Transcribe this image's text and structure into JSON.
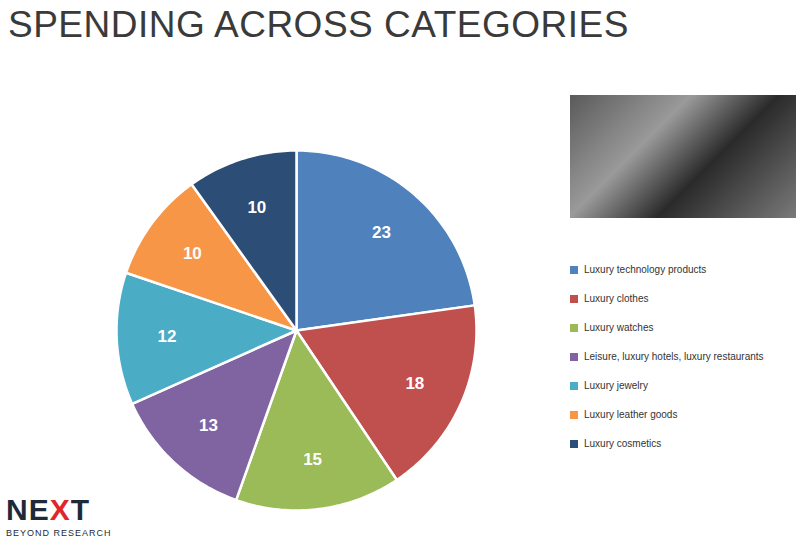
{
  "chart_data": {
    "type": "pie",
    "title": "SPENDING ACROSS CATEGORIES",
    "categories": [
      "Luxury technology products",
      "Luxury clothes",
      "Luxury watches",
      "Leisure, luxury hotels, luxury restaurants",
      "Luxury jewelry",
      "Luxury leather goods",
      "Luxury cosmetics"
    ],
    "values": [
      23,
      18,
      15,
      13,
      12,
      10,
      10
    ],
    "colors": [
      "#4f81bd",
      "#c0504d",
      "#9bbb59",
      "#8064a2",
      "#4bacc6",
      "#f79646",
      "#2c4d75"
    ],
    "data_labels": true,
    "legend": "right"
  },
  "logo": {
    "name": "NEXT",
    "tagline": "BEYOND RESEARCH"
  }
}
